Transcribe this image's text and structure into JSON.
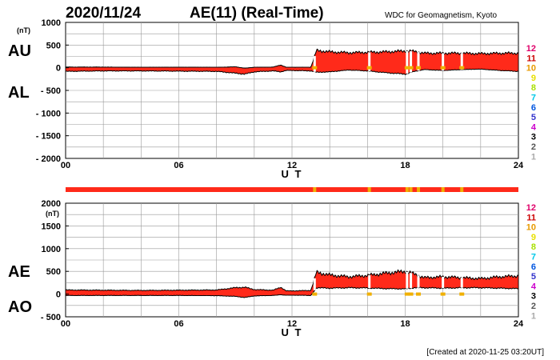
{
  "header": {
    "date": "2020/11/24",
    "title": "AE(11) (Real-Time)",
    "source": "WDC for Geomagnetism, Kyoto"
  },
  "footer": {
    "created": "[Created at 2020-11-25 03:20UT]"
  },
  "station_scale": {
    "labels": [
      "12",
      "11",
      "10",
      "9",
      "8",
      "7",
      "6",
      "5",
      "4",
      "3",
      "2",
      "1"
    ],
    "colors": [
      "#e0006a",
      "#cc0000",
      "#e89a00",
      "#e8e000",
      "#a8e000",
      "#00c8e8",
      "#0055e0",
      "#3333cc",
      "#cc00cc",
      "#000000",
      "#555555",
      "#aaaaaa"
    ]
  },
  "colors": {
    "fill": "#ff2a1a",
    "low_station": "#f0b000",
    "grid": "#999999"
  },
  "chart_data": [
    {
      "type": "area",
      "panel": "AU/AL",
      "unit": "(nT)",
      "xlabel": "U T",
      "xticks": [
        "00",
        "06",
        "12",
        "18",
        "24"
      ],
      "xlim": [
        0,
        24
      ],
      "ylim": [
        -2000,
        1000
      ],
      "yticks": [
        "1000",
        "500",
        "0",
        "- 500",
        "- 1000",
        "- 1500",
        "- 2000"
      ],
      "side_labels": [
        "AU",
        "AL"
      ],
      "series": [
        {
          "name": "AU",
          "x": [
            0,
            2,
            4,
            6,
            8,
            9,
            9.5,
            10,
            11,
            11.4,
            11.7,
            12,
            13,
            13.3,
            14,
            15,
            16,
            17,
            18,
            18.5,
            19,
            20,
            21,
            22,
            23,
            24
          ],
          "values": [
            15,
            15,
            10,
            12,
            10,
            20,
            -10,
            10,
            15,
            60,
            10,
            10,
            10,
            380,
            350,
            330,
            340,
            350,
            370,
            360,
            320,
            320,
            320,
            310,
            320,
            320
          ]
        },
        {
          "name": "AL",
          "x": [
            0,
            2,
            4,
            6,
            8,
            9,
            9.5,
            10,
            11,
            11.4,
            11.7,
            12,
            13,
            13.3,
            14,
            15,
            16,
            17,
            18,
            18.5,
            19,
            20,
            21,
            22,
            23,
            24
          ],
          "values": [
            -80,
            -70,
            -70,
            -75,
            -80,
            -120,
            -140,
            -90,
            -70,
            -90,
            -60,
            -60,
            -70,
            -100,
            -90,
            -50,
            -70,
            -110,
            -140,
            -80,
            -40,
            -60,
            -40,
            -30,
            -60,
            -80
          ]
        }
      ],
      "station_gaps": [
        13.2,
        16.1,
        18.1,
        18.3,
        18.7,
        20.0,
        21.0
      ]
    },
    {
      "type": "area",
      "panel": "AE/AO",
      "unit": "(nT)",
      "xlabel": "U T",
      "xticks": [
        "00",
        "06",
        "12",
        "18",
        "24"
      ],
      "xlim": [
        0,
        24
      ],
      "ylim": [
        -500,
        2000
      ],
      "yticks": [
        "2000",
        "1500",
        "1000",
        "500",
        "0",
        "- 500"
      ],
      "side_labels": [
        "AE",
        "AO"
      ],
      "series": [
        {
          "name": "AE",
          "x": [
            0,
            2,
            4,
            6,
            8,
            9,
            9.5,
            10,
            11,
            11.4,
            11.7,
            12,
            13,
            13.3,
            14,
            15,
            16,
            17,
            18,
            18.5,
            19,
            20,
            21,
            22,
            23,
            24
          ],
          "values": [
            90,
            85,
            80,
            85,
            90,
            140,
            150,
            100,
            85,
            150,
            70,
            70,
            80,
            480,
            420,
            380,
            410,
            460,
            500,
            440,
            360,
            380,
            360,
            340,
            380,
            400
          ]
        },
        {
          "name": "AO",
          "x": [
            0,
            2,
            4,
            6,
            8,
            9,
            9.5,
            10,
            11,
            11.4,
            11.7,
            12,
            13,
            13.3,
            14,
            15,
            16,
            17,
            18,
            18.5,
            19,
            20,
            21,
            22,
            23,
            24
          ],
          "values": [
            -30,
            -30,
            -30,
            -30,
            -35,
            -50,
            -75,
            -40,
            -30,
            -15,
            -25,
            -25,
            -30,
            140,
            130,
            140,
            135,
            120,
            115,
            140,
            140,
            130,
            140,
            140,
            130,
            120
          ]
        }
      ],
      "station_gaps": [
        13.2,
        16.1,
        18.1,
        18.3,
        18.7,
        20.0,
        21.0
      ]
    }
  ]
}
